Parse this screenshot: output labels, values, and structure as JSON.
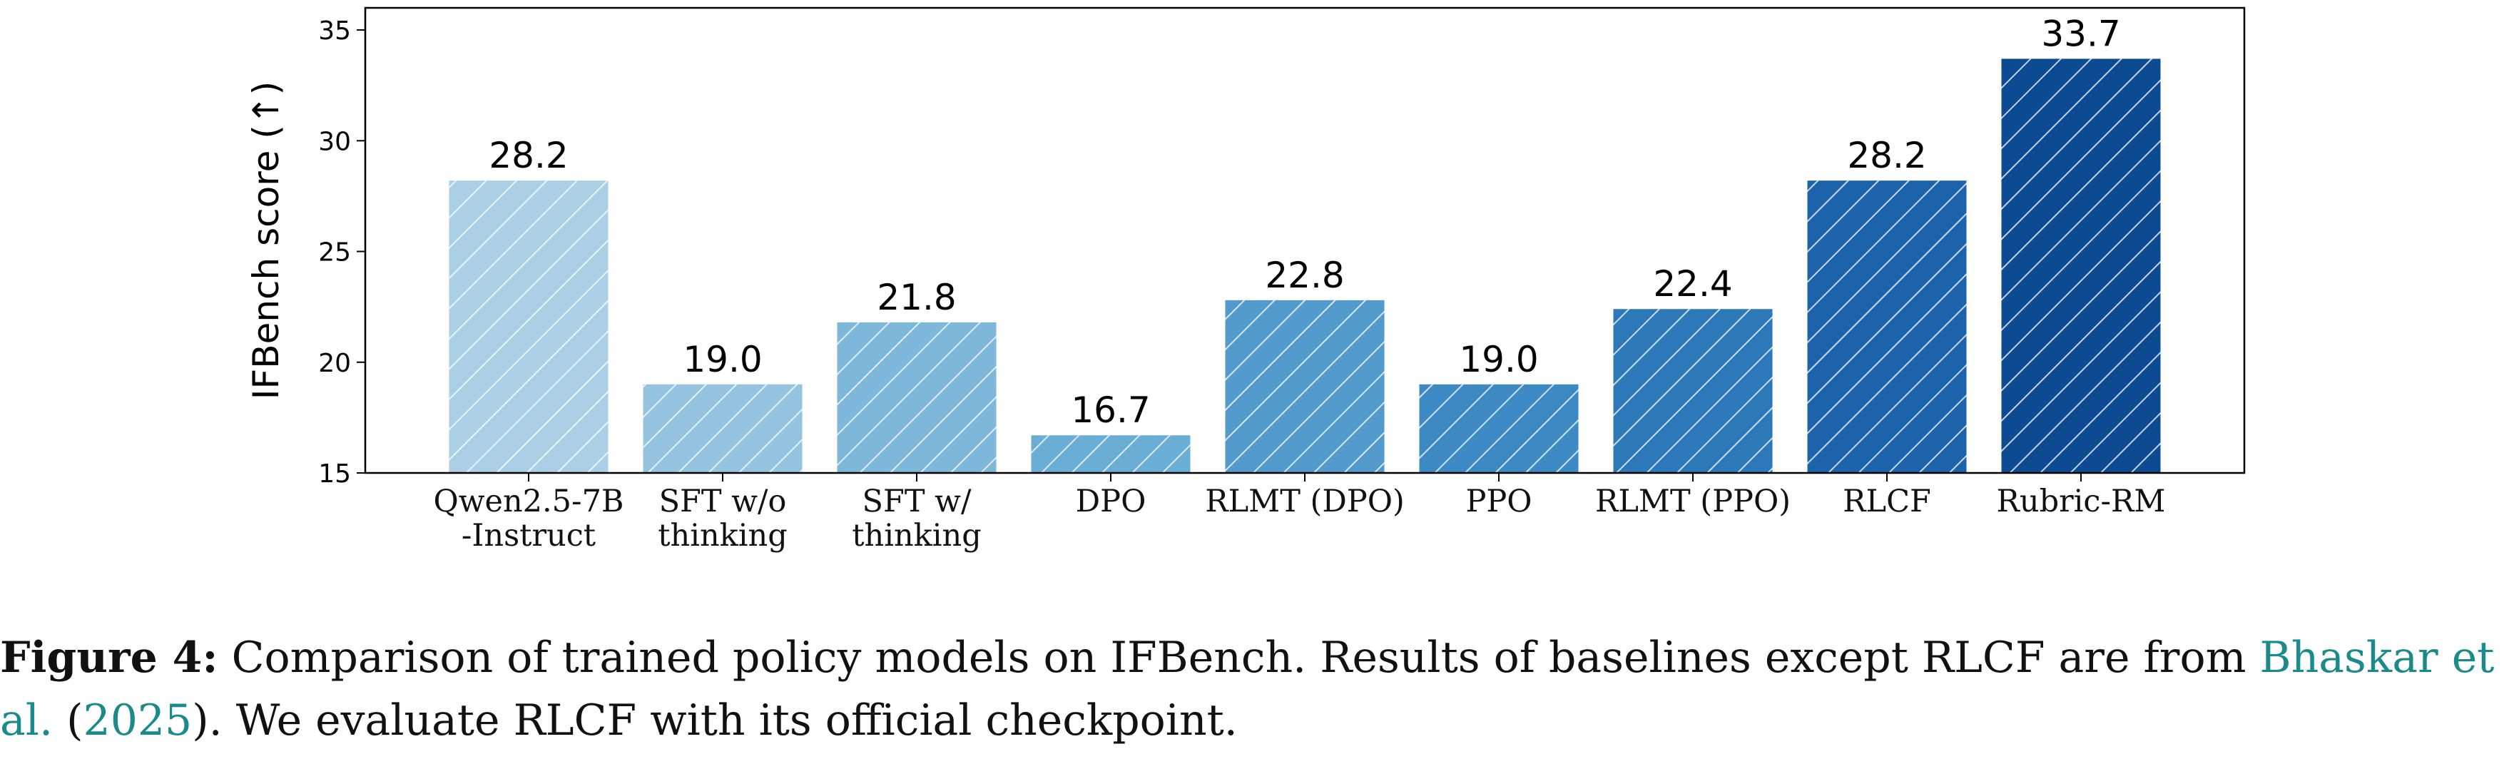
{
  "chart_data": {
    "type": "bar",
    "ylabel": "IFBench score (↑)",
    "categories": [
      "Qwen2.5-7B\n-Instruct",
      "SFT w/o\nthinking",
      "SFT w/\nthinking",
      "DPO",
      "RLMT (DPO)",
      "PPO",
      "RLMT (PPO)",
      "RLCF",
      "Rubric-RM"
    ],
    "values": [
      28.2,
      19.0,
      21.8,
      16.7,
      22.8,
      19.0,
      22.4,
      28.2,
      33.7
    ],
    "value_labels": [
      "28.2",
      "19.0",
      "21.8",
      "16.7",
      "22.8",
      "19.0",
      "22.4",
      "28.2",
      "33.7"
    ],
    "colors": [
      "#abd0e6",
      "#94c4df",
      "#7db7da",
      "#6aaed6",
      "#529acc",
      "#3d89c3",
      "#2c78b8",
      "#1c63ac",
      "#0c4a92"
    ],
    "hatch": true,
    "ylim": [
      15,
      36
    ],
    "yticks": [
      15,
      20,
      25,
      30,
      35
    ]
  },
  "caption": {
    "label": "Figure 4:",
    "text_1": "Comparison of trained policy models on IFBench. Results of baselines except RLCF are from ",
    "link_1": "Bhaskar et al.",
    "text_2": " (",
    "link_2": "2025",
    "text_3": "). We evaluate RLCF with its official checkpoint."
  }
}
